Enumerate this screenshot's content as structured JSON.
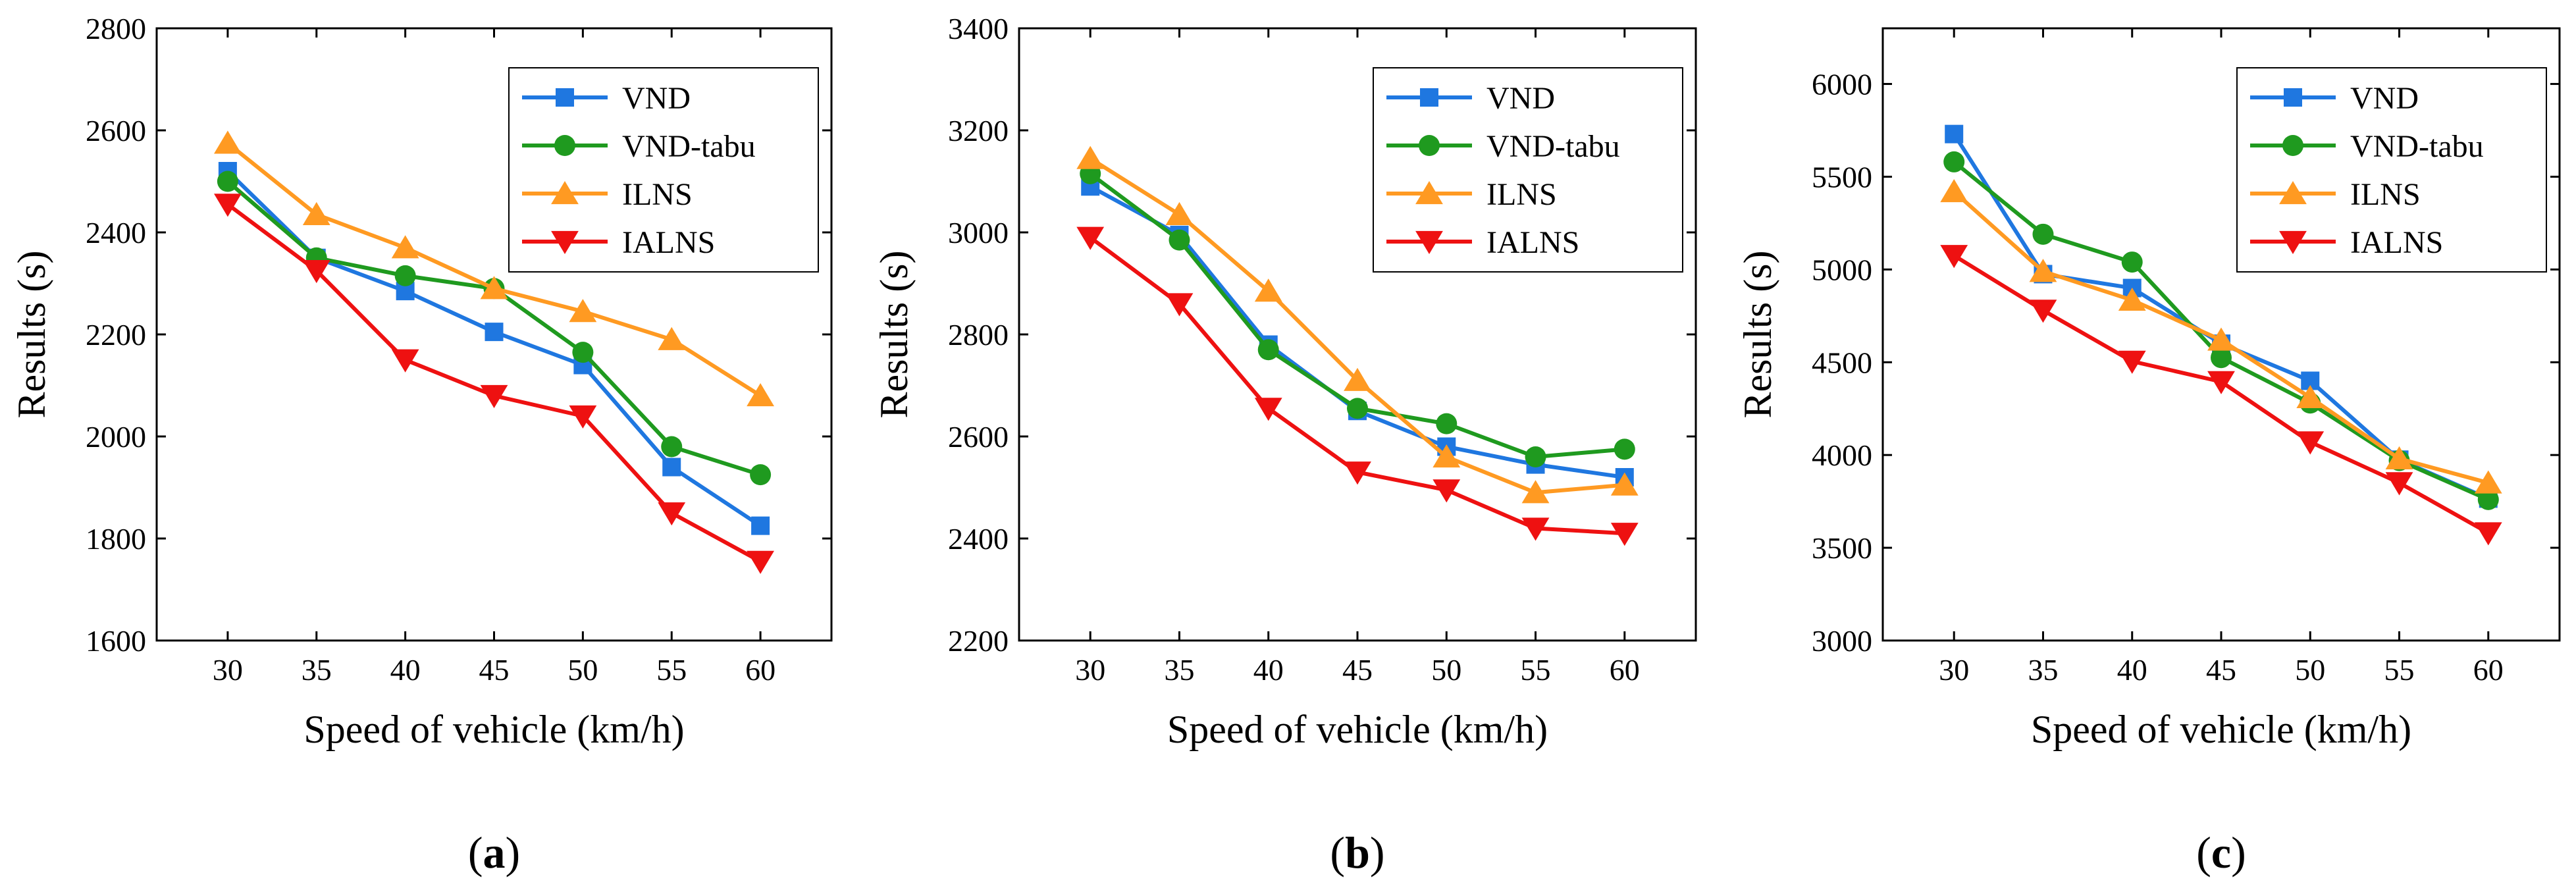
{
  "series_styles": [
    {
      "name": "VND",
      "color": "#1f77e0",
      "marker": "square"
    },
    {
      "name": "VND-tabu",
      "color": "#1f9a1f",
      "marker": "circle"
    },
    {
      "name": "ILNS",
      "color": "#ff9a22",
      "marker": "triangle-up"
    },
    {
      "name": "IALNS",
      "color": "#ee1111",
      "marker": "triangle-down"
    }
  ],
  "chart_data": [
    {
      "type": "line",
      "panel_label": "a",
      "xlabel": "Speed of vehicle (km/h)",
      "ylabel": "Results (s)",
      "x": [
        30,
        35,
        40,
        45,
        50,
        55,
        60
      ],
      "xticks": [
        30,
        35,
        40,
        45,
        50,
        55,
        60
      ],
      "xlim": [
        26,
        64
      ],
      "ylim": [
        1600,
        2800
      ],
      "yticks": [
        1600,
        1800,
        2000,
        2200,
        2400,
        2600,
        2800
      ],
      "legend_position": "top-right",
      "grid": false,
      "series": [
        {
          "name": "VND",
          "values": [
            2520,
            2350,
            2285,
            2205,
            2140,
            1940,
            1825
          ]
        },
        {
          "name": "VND-tabu",
          "values": [
            2500,
            2350,
            2315,
            2290,
            2165,
            1980,
            1925
          ]
        },
        {
          "name": "ILNS",
          "values": [
            2575,
            2435,
            2370,
            2290,
            2245,
            2190,
            2080
          ]
        },
        {
          "name": "IALNS",
          "values": [
            2455,
            2325,
            2150,
            2080,
            2040,
            1850,
            1755
          ]
        }
      ]
    },
    {
      "type": "line",
      "panel_label": "b",
      "xlabel": "Speed of vehicle (km/h)",
      "ylabel": "Results (s)",
      "x": [
        30,
        35,
        40,
        45,
        50,
        55,
        60
      ],
      "xticks": [
        30,
        35,
        40,
        45,
        50,
        55,
        60
      ],
      "xlim": [
        26,
        64
      ],
      "ylim": [
        2200,
        3400
      ],
      "yticks": [
        2200,
        2400,
        2600,
        2800,
        3000,
        3200,
        3400
      ],
      "legend_position": "top-right",
      "grid": false,
      "series": [
        {
          "name": "VND",
          "values": [
            3090,
            2995,
            2780,
            2650,
            2580,
            2545,
            2520
          ]
        },
        {
          "name": "VND-tabu",
          "values": [
            3115,
            2985,
            2770,
            2655,
            2625,
            2560,
            2575
          ]
        },
        {
          "name": "ILNS",
          "values": [
            3145,
            3035,
            2885,
            2710,
            2560,
            2490,
            2505
          ]
        },
        {
          "name": "IALNS",
          "values": [
            2990,
            2860,
            2655,
            2530,
            2495,
            2420,
            2410
          ]
        }
      ]
    },
    {
      "type": "line",
      "panel_label": "c",
      "xlabel": "Speed of vehicle (km/h)",
      "ylabel": "Results (s)",
      "x": [
        30,
        35,
        40,
        45,
        50,
        55,
        60
      ],
      "xticks": [
        30,
        35,
        40,
        45,
        50,
        55,
        60
      ],
      "xlim": [
        26,
        64
      ],
      "ylim": [
        3000,
        6300
      ],
      "yticks": [
        3000,
        3500,
        4000,
        4500,
        5000,
        5500,
        6000
      ],
      "legend_position": "top-right",
      "grid": false,
      "series": [
        {
          "name": "VND",
          "values": [
            5730,
            4975,
            4900,
            4600,
            4400,
            3975,
            3765
          ]
        },
        {
          "name": "VND-tabu",
          "values": [
            5580,
            5190,
            5040,
            4525,
            4280,
            3970,
            3760
          ]
        },
        {
          "name": "ILNS",
          "values": [
            5420,
            4990,
            4835,
            4620,
            4310,
            3980,
            3850
          ]
        },
        {
          "name": "IALNS",
          "values": [
            5075,
            4780,
            4505,
            4395,
            4070,
            3850,
            3580
          ]
        }
      ]
    }
  ]
}
